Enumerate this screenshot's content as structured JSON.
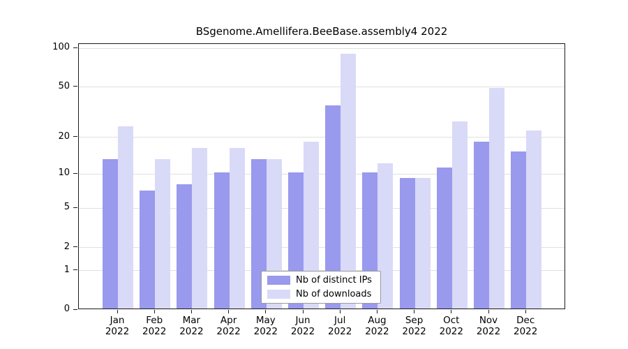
{
  "title": "BSgenome.Amellifera.BeeBase.assembly4 2022",
  "chart_data": {
    "type": "bar",
    "title": "BSgenome.Amellifera.BeeBase.assembly4 2022",
    "categories": [
      "Jan",
      "Feb",
      "Mar",
      "Apr",
      "May",
      "Jun",
      "Jul",
      "Aug",
      "Sep",
      "Oct",
      "Nov",
      "Dec"
    ],
    "x_sublabel": "2022",
    "series": [
      {
        "name": "Nb of distinct IPs",
        "color": "#9999ee",
        "values": [
          13,
          7,
          8,
          10,
          13,
          10,
          35,
          10,
          9,
          11,
          18,
          15
        ]
      },
      {
        "name": "Nb of downloads",
        "color": "#d9d9f8",
        "values": [
          24,
          13,
          16,
          16,
          13,
          18,
          88,
          12,
          9,
          26,
          48,
          22
        ]
      }
    ],
    "y_ticks": [
      0,
      1,
      2,
      5,
      10,
      20,
      50,
      100
    ],
    "ylim": [
      0,
      100
    ],
    "scale": "log10(1+y)",
    "grid": true,
    "grid_color": "#e0e0e0",
    "legend_position": "bottom-center",
    "legend_items": [
      "Nb of distinct IPs",
      "Nb of downloads"
    ]
  }
}
